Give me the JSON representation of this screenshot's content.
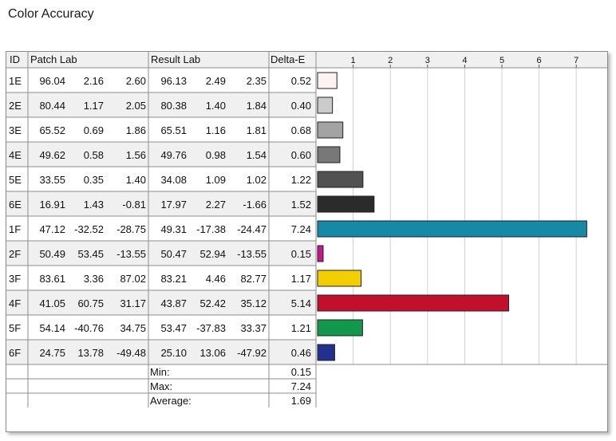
{
  "title": "Color Accuracy",
  "headers": {
    "id": "ID",
    "patch": "Patch Lab",
    "result": "Result Lab",
    "delta": "Delta-E"
  },
  "rows": [
    {
      "id": "1E",
      "patch": [
        "96.04",
        "2.16",
        "2.60"
      ],
      "result": [
        "96.13",
        "2.49",
        "2.35"
      ],
      "delta": "0.52",
      "color": "#fdf3f3"
    },
    {
      "id": "2E",
      "patch": [
        "80.44",
        "1.17",
        "2.05"
      ],
      "result": [
        "80.38",
        "1.40",
        "1.84"
      ],
      "delta": "0.40",
      "color": "#cbcbcb"
    },
    {
      "id": "3E",
      "patch": [
        "65.52",
        "0.69",
        "1.86"
      ],
      "result": [
        "65.51",
        "1.16",
        "1.81"
      ],
      "delta": "0.68",
      "color": "#a3a3a3"
    },
    {
      "id": "4E",
      "patch": [
        "49.62",
        "0.58",
        "1.56"
      ],
      "result": [
        "49.76",
        "0.98",
        "1.54"
      ],
      "delta": "0.60",
      "color": "#787878"
    },
    {
      "id": "5E",
      "patch": [
        "33.55",
        "0.35",
        "1.40"
      ],
      "result": [
        "34.08",
        "1.09",
        "1.02"
      ],
      "delta": "1.22",
      "color": "#525252"
    },
    {
      "id": "6E",
      "patch": [
        "16.91",
        "1.43",
        "-0.81"
      ],
      "result": [
        "17.97",
        "2.27",
        "-1.66"
      ],
      "delta": "1.52",
      "color": "#2b2b2b"
    },
    {
      "id": "1F",
      "patch": [
        "47.12",
        "-32.52",
        "-28.75"
      ],
      "result": [
        "49.31",
        "-17.38",
        "-24.47"
      ],
      "delta": "7.24",
      "color": "#1589a5"
    },
    {
      "id": "2F",
      "patch": [
        "50.49",
        "53.45",
        "-13.55"
      ],
      "result": [
        "50.47",
        "52.94",
        "-13.55"
      ],
      "delta": "0.15",
      "color": "#c4188e"
    },
    {
      "id": "3F",
      "patch": [
        "83.61",
        "3.36",
        "87.02"
      ],
      "result": [
        "83.21",
        "4.46",
        "82.77"
      ],
      "delta": "1.17",
      "color": "#f2ce00"
    },
    {
      "id": "4F",
      "patch": [
        "41.05",
        "60.75",
        "31.17"
      ],
      "result": [
        "43.87",
        "52.42",
        "35.12"
      ],
      "delta": "5.14",
      "color": "#c2102c"
    },
    {
      "id": "5F",
      "patch": [
        "54.14",
        "-40.76",
        "34.75"
      ],
      "result": [
        "53.47",
        "-37.83",
        "33.37"
      ],
      "delta": "1.21",
      "color": "#13974a"
    },
    {
      "id": "6F",
      "patch": [
        "24.75",
        "13.78",
        "-49.48"
      ],
      "result": [
        "25.10",
        "13.06",
        "-47.92"
      ],
      "delta": "0.46",
      "color": "#24308f"
    }
  ],
  "summary": [
    {
      "label": "Min:",
      "value": "0.15"
    },
    {
      "label": "Max:",
      "value": "7.24"
    },
    {
      "label": "Average:",
      "value": "1.69"
    }
  ],
  "chart_data": {
    "type": "bar",
    "orientation": "horizontal",
    "title": "Color Accuracy",
    "categories": [
      "1E",
      "2E",
      "3E",
      "4E",
      "5E",
      "6E",
      "1F",
      "2F",
      "3F",
      "4F",
      "5F",
      "6F"
    ],
    "values": [
      0.52,
      0.4,
      0.68,
      0.6,
      1.22,
      1.52,
      7.24,
      0.15,
      1.17,
      5.14,
      1.21,
      0.46
    ],
    "xlim": [
      0,
      8
    ],
    "xticks": [
      "1",
      "2",
      "3",
      "4",
      "5",
      "6",
      "7"
    ],
    "grid": true,
    "legend": "none"
  }
}
